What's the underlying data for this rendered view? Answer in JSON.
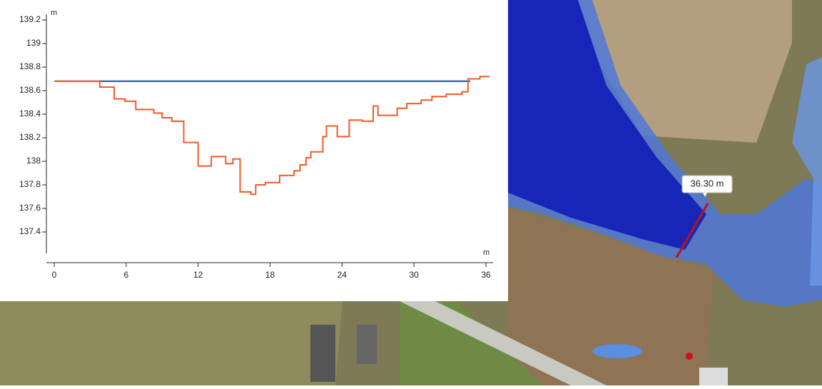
{
  "chart_data": {
    "type": "line",
    "ylabel": "m",
    "xlabel": "m",
    "xlim": [
      0,
      36
    ],
    "xticks": [
      0,
      6,
      12,
      18,
      24,
      30,
      36
    ],
    "ylim": [
      137.2,
      139.2
    ],
    "yticks": [
      137.4,
      137.6,
      137.8,
      138,
      138.2,
      138.4,
      138.6,
      138.8,
      139,
      139.2
    ],
    "step": true,
    "series": [
      {
        "color": "#1f4e8c",
        "step": false,
        "x": [
          0,
          34.7
        ],
        "values": [
          138.68,
          138.68
        ]
      },
      {
        "color": "#f05a28",
        "step": true,
        "x": [
          0,
          3.8,
          5.0,
          5.9,
          6.8,
          8.3,
          9.0,
          9.8,
          10.8,
          12.0,
          13.1,
          14.3,
          14.9,
          15.5,
          16.4,
          16.8,
          17.6,
          18.8,
          20.0,
          20.5,
          21.0,
          21.4,
          22.4,
          22.7,
          23.6,
          24.6,
          25.7,
          26.6,
          27.0,
          28.6,
          29.4,
          30.6,
          31.5,
          32.7,
          34.0,
          34.5,
          35.5,
          36.3
        ],
        "values": [
          138.68,
          138.63,
          138.53,
          138.51,
          138.44,
          138.41,
          138.37,
          138.34,
          138.16,
          137.96,
          138.04,
          137.98,
          138.02,
          137.74,
          137.72,
          137.8,
          137.82,
          137.88,
          137.92,
          137.97,
          138.03,
          138.08,
          138.21,
          138.3,
          138.21,
          138.35,
          138.34,
          138.47,
          138.39,
          138.45,
          138.49,
          138.52,
          138.55,
          138.57,
          138.59,
          138.7,
          138.72,
          138.72
        ]
      }
    ]
  },
  "map": {
    "measure_label": "36.30 m"
  }
}
